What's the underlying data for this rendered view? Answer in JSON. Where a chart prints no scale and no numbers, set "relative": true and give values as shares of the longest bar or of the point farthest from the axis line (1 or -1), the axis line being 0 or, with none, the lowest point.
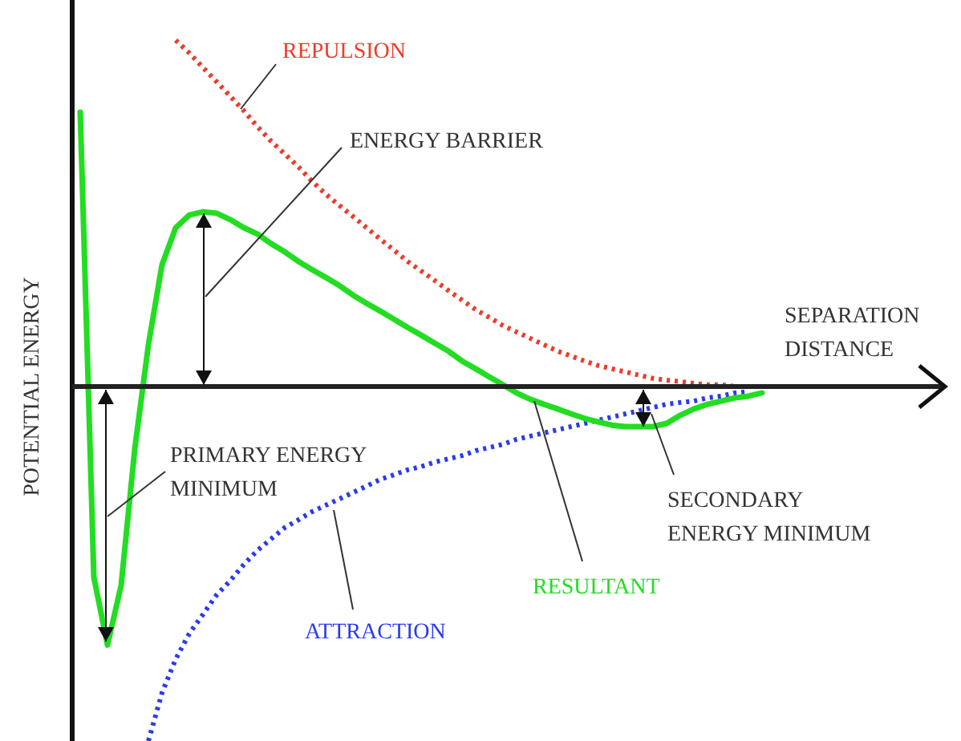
{
  "chart_data": {
    "type": "line",
    "relative": true,
    "xlabel": "SEPARATION DISTANCE",
    "ylabel": "POTENTIAL ENERGY",
    "marker": "none",
    "categories": [
      null,
      null,
      null,
      null,
      null,
      null,
      null,
      null,
      null,
      null,
      null,
      null,
      null,
      null,
      null,
      null,
      null,
      null,
      null,
      null,
      null,
      null,
      null,
      null,
      null,
      null,
      null,
      null,
      null,
      null,
      null,
      null,
      null,
      null,
      null,
      null,
      null,
      null,
      null,
      null,
      null,
      null,
      null,
      null,
      null,
      null,
      null,
      null,
      null,
      null,
      null
    ],
    "series": [
      {
        "name": "REPULSION",
        "color": "#ee3b2b",
        "line_style": "dotted",
        "values": [
          null,
          null,
          null,
          null,
          null,
          null,
          null,
          0.977,
          0.941,
          0.9,
          0.86,
          0.819,
          0.778,
          0.733,
          0.692,
          0.656,
          0.62,
          0.579,
          0.543,
          0.511,
          0.48,
          0.448,
          0.416,
          0.385,
          0.353,
          0.326,
          0.299,
          0.271,
          0.244,
          0.217,
          0.195,
          0.172,
          0.154,
          0.136,
          0.118,
          0.1,
          0.086,
          0.072,
          0.059,
          0.05,
          0.041,
          0.032,
          0.023,
          0.018,
          0.014,
          0.009,
          0.005,
          0.005,
          0,
          null,
          null
        ]
      },
      {
        "name": "ATTRACTION",
        "color": "#2a3bee",
        "line_style": "dotted",
        "values": [
          null,
          null,
          null,
          null,
          null,
          -1,
          -0.864,
          -0.769,
          -0.697,
          -0.643,
          -0.588,
          -0.548,
          -0.502,
          -0.462,
          -0.43,
          -0.398,
          -0.376,
          -0.353,
          -0.335,
          -0.317,
          -0.299,
          -0.281,
          -0.262,
          -0.249,
          -0.235,
          -0.226,
          -0.213,
          -0.204,
          -0.195,
          -0.181,
          -0.172,
          -0.163,
          -0.149,
          -0.14,
          -0.131,
          -0.122,
          -0.113,
          -0.104,
          -0.095,
          -0.086,
          -0.077,
          -0.068,
          -0.059,
          -0.05,
          -0.045,
          -0.041,
          -0.032,
          -0.027,
          -0.018,
          -0.014,
          null
        ]
      },
      {
        "name": "RESULTANT",
        "color": "#22dd22",
        "line_style": "solid",
        "values": [
          0.774,
          -0.538,
          -0.729,
          -0.561,
          -0.176,
          0.118,
          0.344,
          0.448,
          0.484,
          0.493,
          0.489,
          0.471,
          0.448,
          0.43,
          0.403,
          0.38,
          0.353,
          0.33,
          0.308,
          0.285,
          0.258,
          0.235,
          0.213,
          0.19,
          0.167,
          0.145,
          0.122,
          0.1,
          0.072,
          0.05,
          0.027,
          0.005,
          -0.018,
          -0.036,
          -0.05,
          -0.063,
          -0.077,
          -0.09,
          -0.1,
          -0.109,
          -0.113,
          -0.113,
          -0.113,
          -0.104,
          -0.081,
          -0.063,
          -0.05,
          -0.041,
          -0.032,
          -0.027,
          -0.018
        ]
      }
    ],
    "annotations": [
      "ENERGY BARRIER",
      "PRIMARY ENERGY MINIMUM",
      "SECONDARY ENERGY MINIMUM"
    ]
  }
}
